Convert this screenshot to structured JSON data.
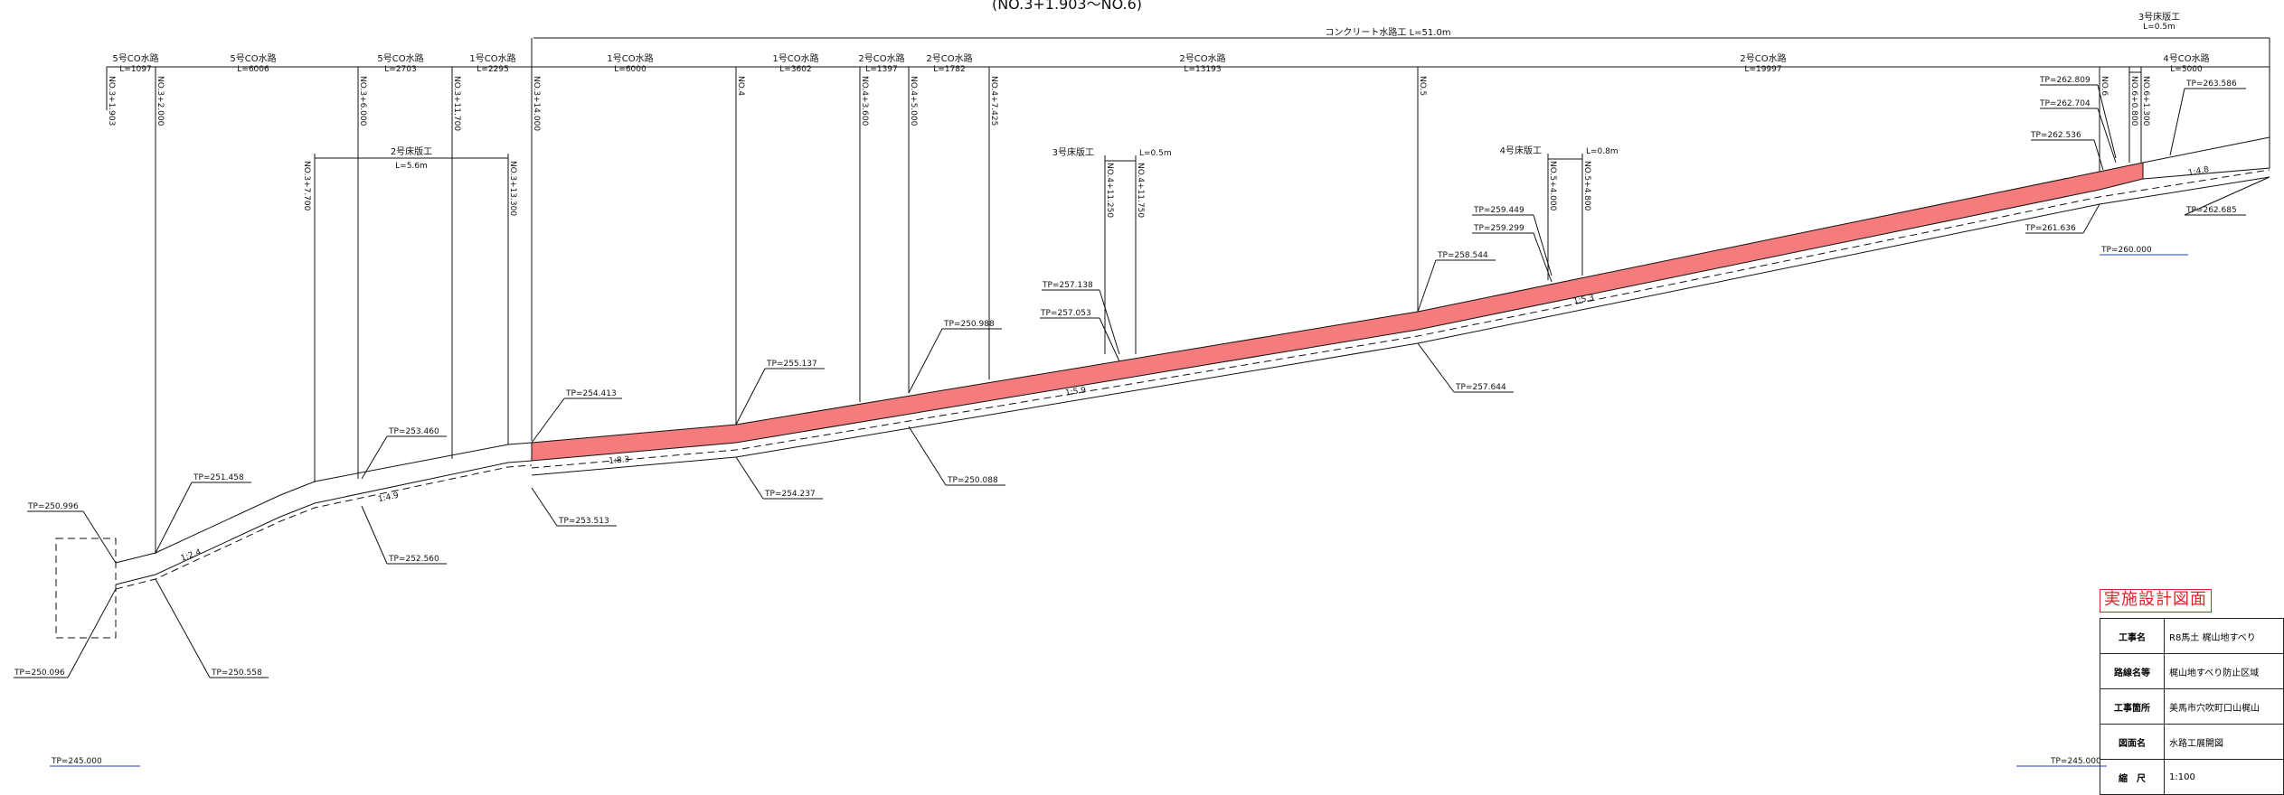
{
  "header": {
    "section": "(NO.3+1.903〜NO.6)",
    "total": "コンクリート水路工 L=51.0m"
  },
  "channels": [
    {
      "name": "5号CO水路",
      "len": "L=1097"
    },
    {
      "name": "5号CO水路",
      "len": "L=6006"
    },
    {
      "name": "5号CO水路",
      "len": "L=2703"
    },
    {
      "name": "1号CO水路",
      "len": "L=2295"
    },
    {
      "name": "1号CO水路",
      "len": "L=6000"
    },
    {
      "name": "1号CO水路",
      "len": "L=3602"
    },
    {
      "name": "2号CO水路",
      "len": "L=1397"
    },
    {
      "name": "2号CO水路",
      "len": "L=1782"
    },
    {
      "name": "2号CO水路",
      "len": "L=13193"
    },
    {
      "name": "2号CO水路",
      "len": "L=19997"
    },
    {
      "name": "4号CO水路",
      "len": "L=5000"
    }
  ],
  "stations": [
    "NO.3+1.903",
    "NO.3+2.000",
    "NO.3+6.000",
    "NO.3+11.700",
    "NO.3+14.000",
    "NO.4",
    "NO.4+3.600",
    "NO.4+5.000",
    "NO.4+7.425",
    "NO.5",
    "NO.6",
    "NO.6+0.800",
    "NO.6+1.300"
  ],
  "sills": {
    "s2": {
      "name": "2号床版工",
      "len": "L=5.6m",
      "sta_a": "NO.3+7.700",
      "sta_b": "NO.3+13.300"
    },
    "s3": {
      "name": "3号床版工",
      "len": "L=0.5m",
      "sta_a": "NO.4+11.250",
      "sta_b": "NO.4+11.750"
    },
    "s4": {
      "name": "4号床版工",
      "len": "L=0.8m",
      "sta_a": "NO.5+4.000",
      "sta_b": "NO.5+4.800"
    },
    "s5": {
      "name": "3号床版工",
      "len": "L=0.5m"
    }
  },
  "elevations": {
    "e250996": "TP=250.996",
    "e250096": "TP=250.096",
    "e250558": "TP=250.558",
    "e251458": "TP=251.458",
    "e252560": "TP=252.560",
    "e253460": "TP=253.460",
    "e254413": "TP=254.413",
    "e253513": "TP=253.513",
    "e255137": "TP=255.137",
    "e254237": "TP=254.237",
    "e250988": "TP=250.988",
    "e250088": "TP=250.088",
    "e257138": "TP=257.138",
    "e257053": "TP=257.053",
    "e258544": "TP=258.544",
    "e257644": "TP=257.644",
    "e259449": "TP=259.449",
    "e259299": "TP=259.299",
    "e262809": "TP=262.809",
    "e262704": "TP=262.704",
    "e262536": "TP=262.536",
    "e261636": "TP=261.636",
    "e263586": "TP=263.586",
    "e262685": "TP=262.685",
    "e260000": "TP=260.000",
    "e245000a": "TP=245.000",
    "e245000b": "TP=245.000"
  },
  "slopes": [
    "1:2.4",
    "1:4.9",
    "1:8.3",
    "1:5.9",
    "1:5.3",
    "1:4.8"
  ],
  "colors": {
    "fill": "#f57c7c",
    "accent": "#e0202a",
    "line": "#111111",
    "datum": "#1a3fd6"
  },
  "title_block": {
    "title": "実施設計図面",
    "rows": [
      {
        "k": "工事名",
        "v": "R8馬土 梶山地すべり"
      },
      {
        "k": "路線名等",
        "v": "梶山地すべり防止区域"
      },
      {
        "k": "工事箇所",
        "v": "美馬市穴吹町口山梶山"
      },
      {
        "k": "図面名",
        "v": "水路工展開図"
      },
      {
        "k": "縮　尺",
        "v": "1:100"
      }
    ]
  }
}
